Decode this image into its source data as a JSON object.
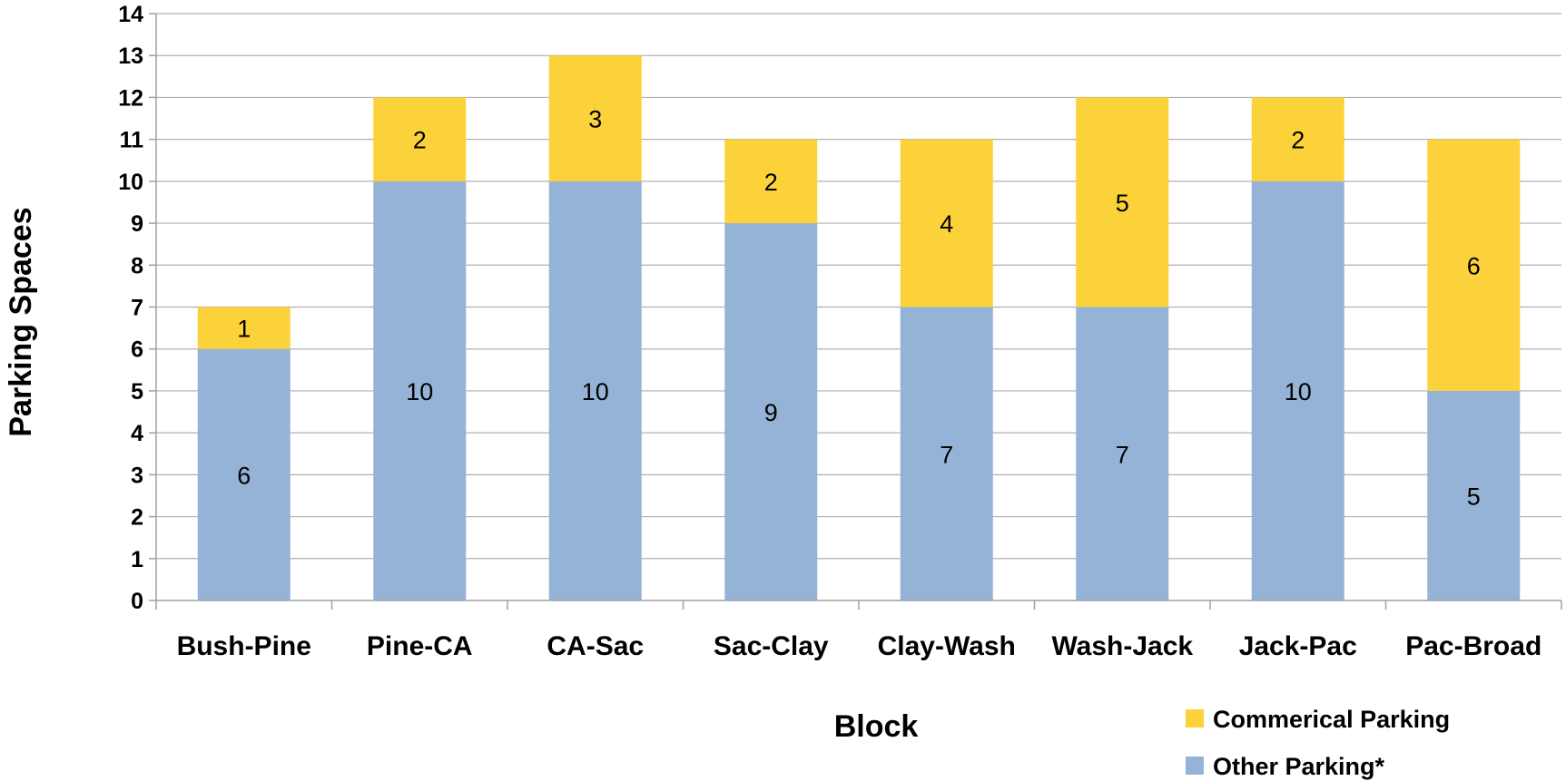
{
  "chart_data": {
    "type": "bar",
    "stacked": true,
    "title": "",
    "xlabel": "Block",
    "ylabel": "Parking Spaces",
    "ylim": [
      0,
      14
    ],
    "yticks": [
      0,
      1,
      2,
      3,
      4,
      5,
      6,
      7,
      8,
      9,
      10,
      11,
      12,
      13,
      14
    ],
    "grid": true,
    "legend_position": "bottom-right",
    "categories": [
      "Bush-Pine",
      "Pine-CA",
      "CA-Sac",
      "Sac-Clay",
      "Clay-Wash",
      "Wash-Jack",
      "Jack-Pac",
      "Pac-Broad"
    ],
    "series": [
      {
        "name": "Other Parking*",
        "color": "#95B3D7",
        "values": [
          6,
          10,
          10,
          9,
          7,
          7,
          10,
          5
        ]
      },
      {
        "name": "Commerical Parking",
        "color": "#FCD23B",
        "values": [
          1,
          2,
          3,
          2,
          4,
          5,
          2,
          6
        ]
      }
    ],
    "legend_order": [
      1,
      0
    ]
  }
}
